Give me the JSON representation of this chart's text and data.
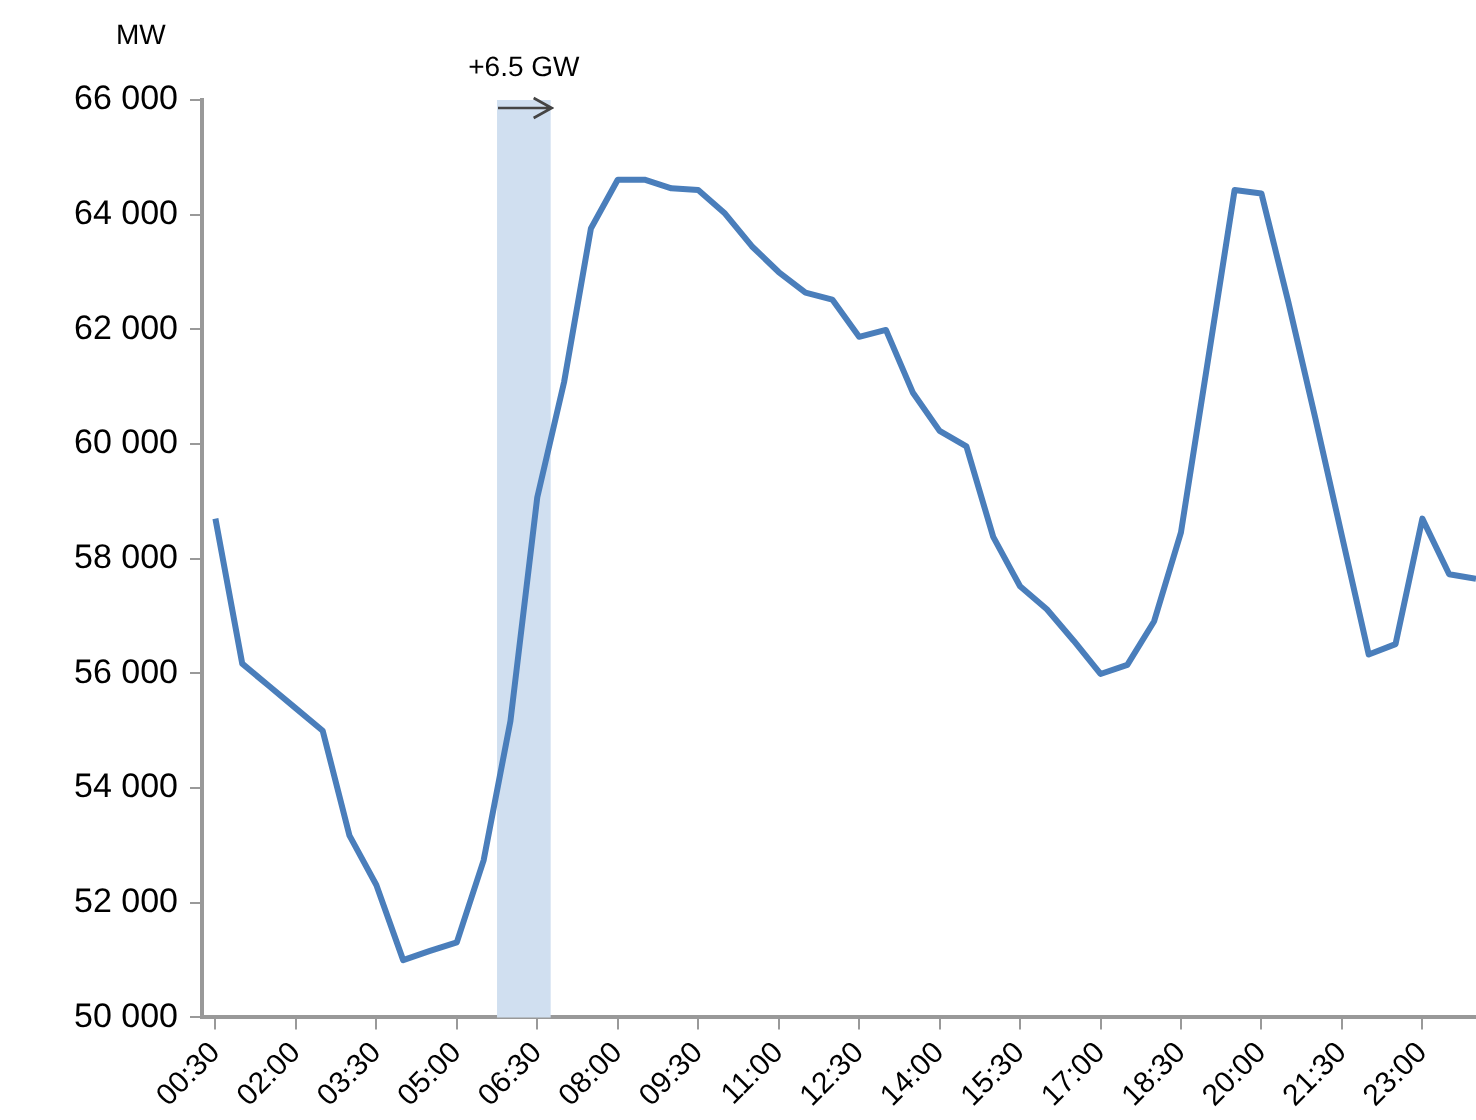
{
  "chart_data": {
    "type": "line",
    "ylabel": "MW",
    "x": [
      0.5,
      1,
      1.5,
      2,
      2.5,
      3,
      3.5,
      4,
      4.5,
      5,
      5.5,
      6,
      6.5,
      7,
      7.5,
      8,
      8.5,
      9,
      9.5,
      10,
      10.5,
      11,
      11.5,
      12,
      12.5,
      13,
      13.5,
      14,
      14.5,
      15,
      15.5,
      16,
      16.5,
      17,
      17.5,
      18,
      18.5,
      19,
      19.5,
      20,
      20.5,
      21,
      21.5,
      22,
      22.5,
      23,
      23.5,
      24
    ],
    "series": [
      {
        "color": "#4a7ebb",
        "values": [
          58700,
          56170,
          55780,
          55390,
          55000,
          53170,
          52310,
          51000,
          51160,
          51310,
          52740,
          55170,
          59070,
          61080,
          63760,
          64610,
          64610,
          64460,
          64430,
          64020,
          63450,
          63000,
          62640,
          62520,
          61870,
          61990,
          60900,
          60230,
          59960,
          58380,
          57520,
          57120,
          56570,
          55990,
          56150,
          56910,
          58460,
          61440,
          64430,
          64370,
          62480,
          60470,
          58400,
          56330,
          56510,
          58700,
          57730,
          57650
        ]
      }
    ],
    "xlim": [
      0.25,
      24
    ],
    "xticks": [
      {
        "value": 0.5,
        "label": "00:30"
      },
      {
        "value": 2,
        "label": "02:00"
      },
      {
        "value": 3.5,
        "label": "03:30"
      },
      {
        "value": 5,
        "label": "05:00"
      },
      {
        "value": 6.5,
        "label": "06:30"
      },
      {
        "value": 8,
        "label": "08:00"
      },
      {
        "value": 9.5,
        "label": "09:30"
      },
      {
        "value": 11,
        "label": "11:00"
      },
      {
        "value": 12.5,
        "label": "12:30"
      },
      {
        "value": 14,
        "label": "14:00"
      },
      {
        "value": 15.5,
        "label": "15:30"
      },
      {
        "value": 17,
        "label": "17:00"
      },
      {
        "value": 18.5,
        "label": "18:30"
      },
      {
        "value": 20,
        "label": "20:00"
      },
      {
        "value": 21.5,
        "label": "21:30"
      },
      {
        "value": 23,
        "label": "23:00"
      }
    ],
    "ylim": [
      50000,
      66000
    ],
    "yticks": [
      {
        "value": 50000,
        "label": "50 000"
      },
      {
        "value": 52000,
        "label": "52 000"
      },
      {
        "value": 54000,
        "label": "54 000"
      },
      {
        "value": 56000,
        "label": "56 000"
      },
      {
        "value": 58000,
        "label": "58 000"
      },
      {
        "value": 60000,
        "label": "60 000"
      },
      {
        "value": 62000,
        "label": "62 000"
      },
      {
        "value": 64000,
        "label": "64 000"
      },
      {
        "value": 66000,
        "label": "66 000"
      }
    ],
    "bands": [
      {
        "axis": "x",
        "from": 5.75,
        "to": 6.75,
        "color": "#d0dff0"
      }
    ],
    "annotations": [
      "+6.5 GW"
    ],
    "grid": false,
    "legend": false
  }
}
